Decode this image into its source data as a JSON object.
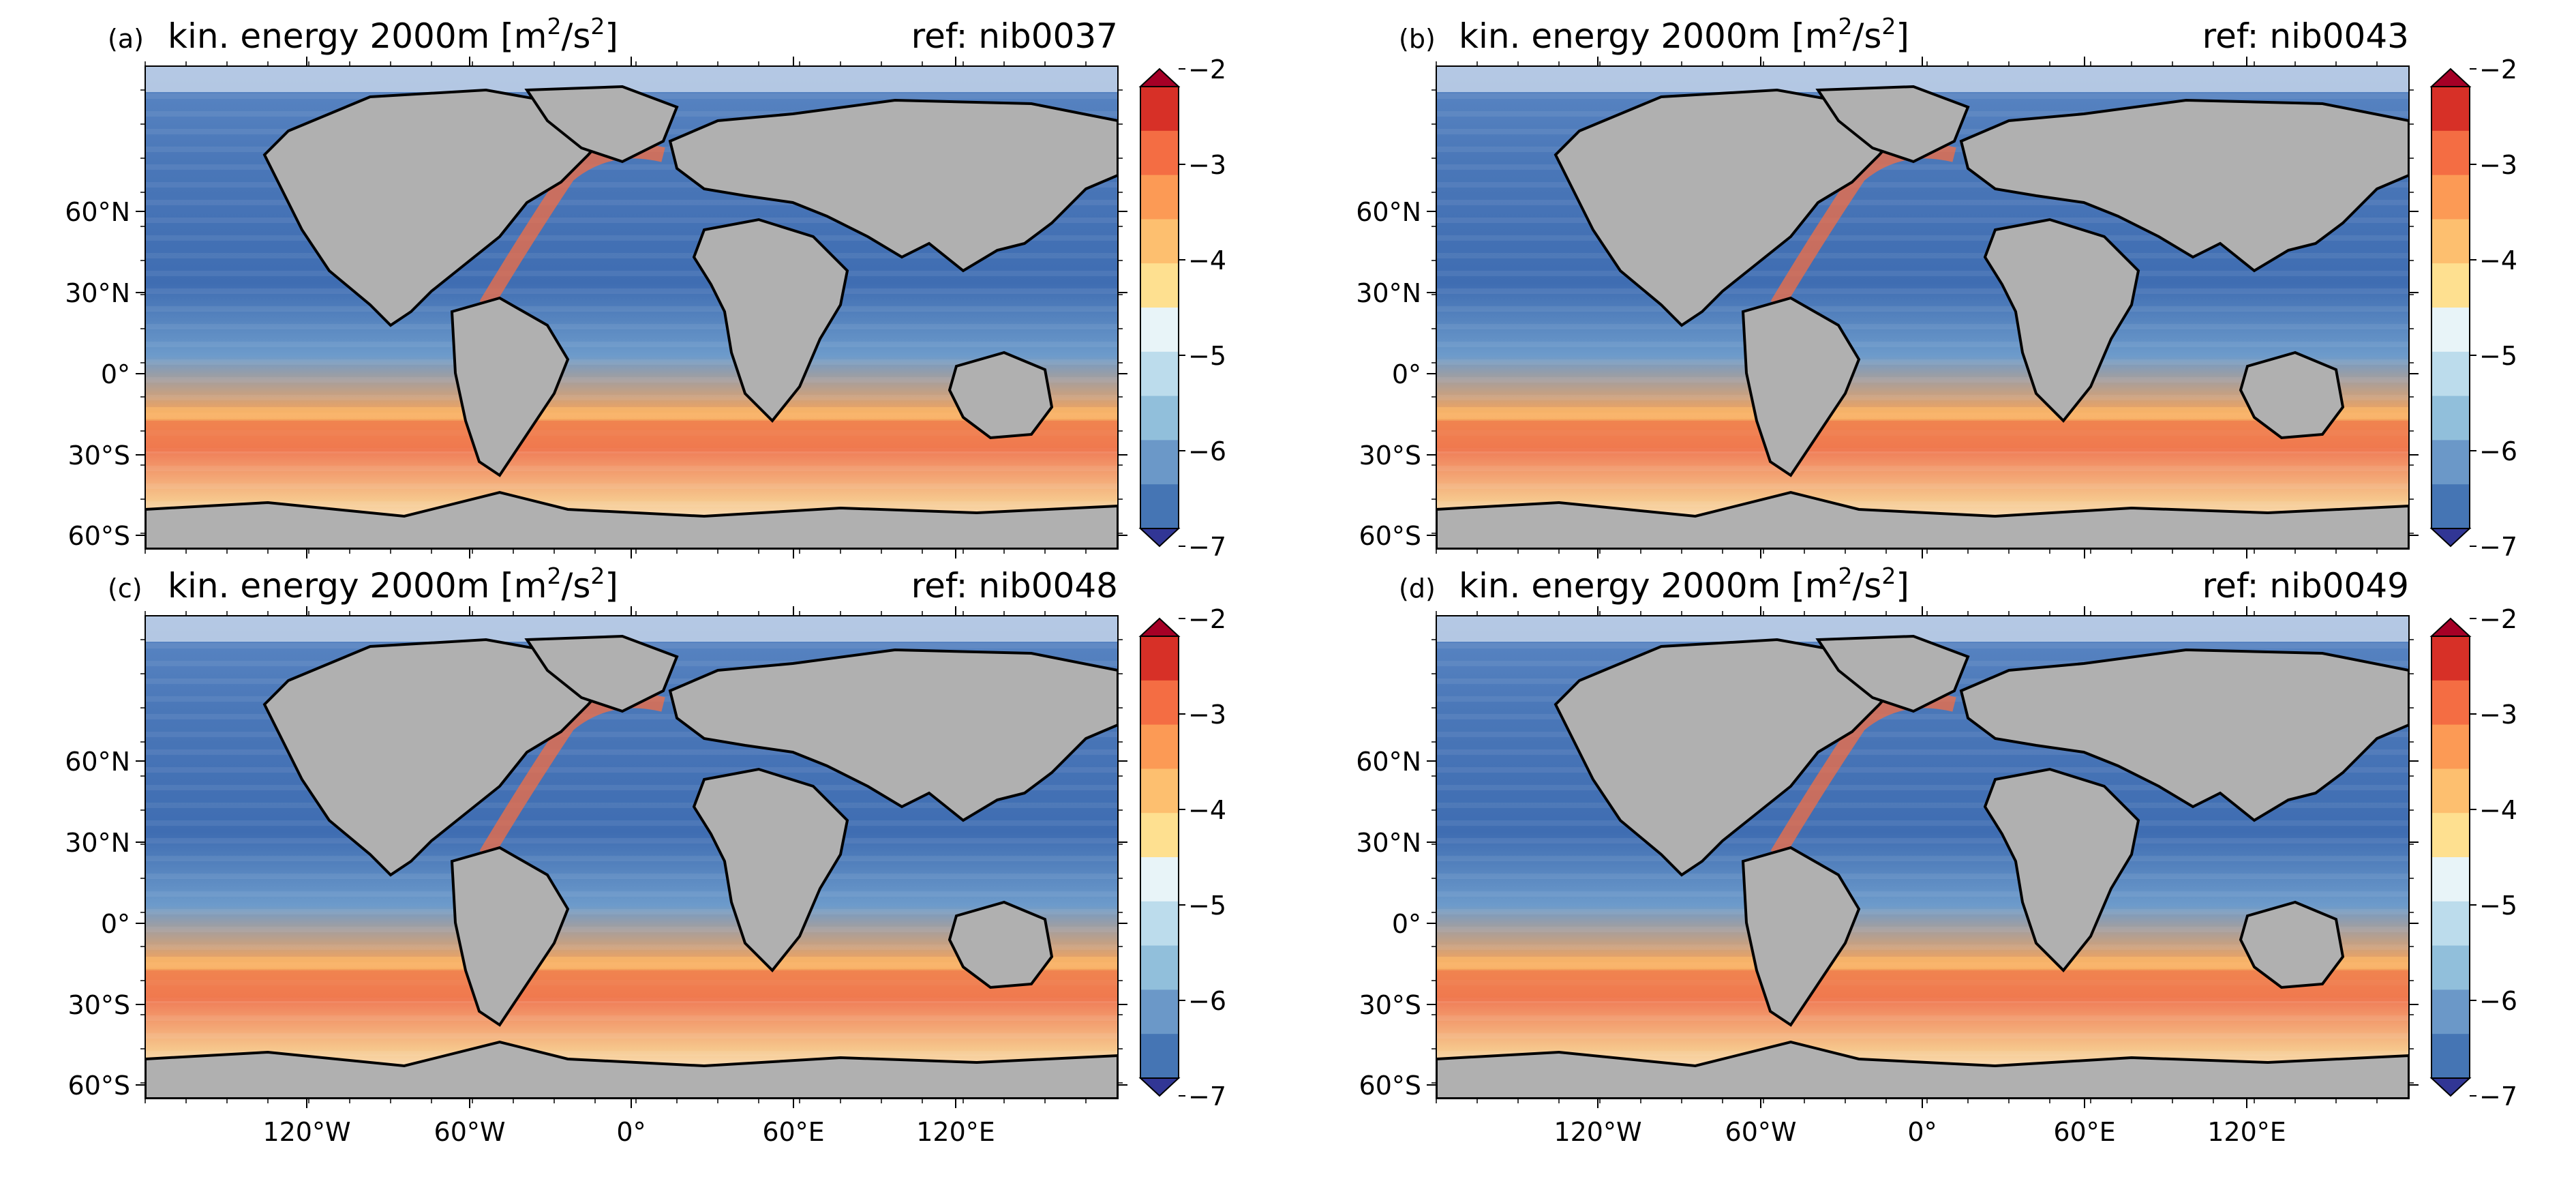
{
  "figure": {
    "colors": {
      "land": "#b0b0b0",
      "coast": "#000000",
      "colorbar": [
        "#313695",
        "#4575b4",
        "#6b98c8",
        "#91bfdb",
        "#bcdcec",
        "#e8f4f8",
        "#fee090",
        "#fdbf6f",
        "#fc9a55",
        "#f46d43",
        "#d73027",
        "#a50026"
      ]
    },
    "colorbar": {
      "ticks": [
        "-2",
        "-3",
        "-4",
        "-5",
        "-6",
        "-7"
      ],
      "levels": [
        -7,
        -6.5,
        -6,
        -5.5,
        -5,
        -4.5,
        -4,
        -3.5,
        -3,
        -2.5,
        -2
      ]
    },
    "lat_ticks": [
      "60°N",
      "30°N",
      "0°",
      "30°S",
      "60°S"
    ],
    "lon_ticks": [
      "120°W",
      "60°W",
      "0°",
      "60°E",
      "120°E"
    ],
    "panels": [
      {
        "id": "a",
        "label": "(a)",
        "title": "kin. energy 2000m [m",
        "title_sup1": "2",
        "title_mid": "/s",
        "title_sup2": "2",
        "title_end": "]",
        "ref": "ref: nib0037"
      },
      {
        "id": "b",
        "label": "(b)",
        "title": "kin. energy 2000m [m",
        "title_sup1": "2",
        "title_mid": "/s",
        "title_sup2": "2",
        "title_end": "]",
        "ref": "ref: nib0043"
      },
      {
        "id": "c",
        "label": "(c)",
        "title": "kin. energy 2000m [m",
        "title_sup1": "2",
        "title_mid": "/s",
        "title_sup2": "2",
        "title_end": "]",
        "ref": "ref: nib0048"
      },
      {
        "id": "d",
        "label": "(d)",
        "title": "kin. energy 2000m [m",
        "title_sup1": "2",
        "title_mid": "/s",
        "title_sup2": "2",
        "title_end": "]",
        "ref": "ref: nib0049"
      }
    ]
  }
}
